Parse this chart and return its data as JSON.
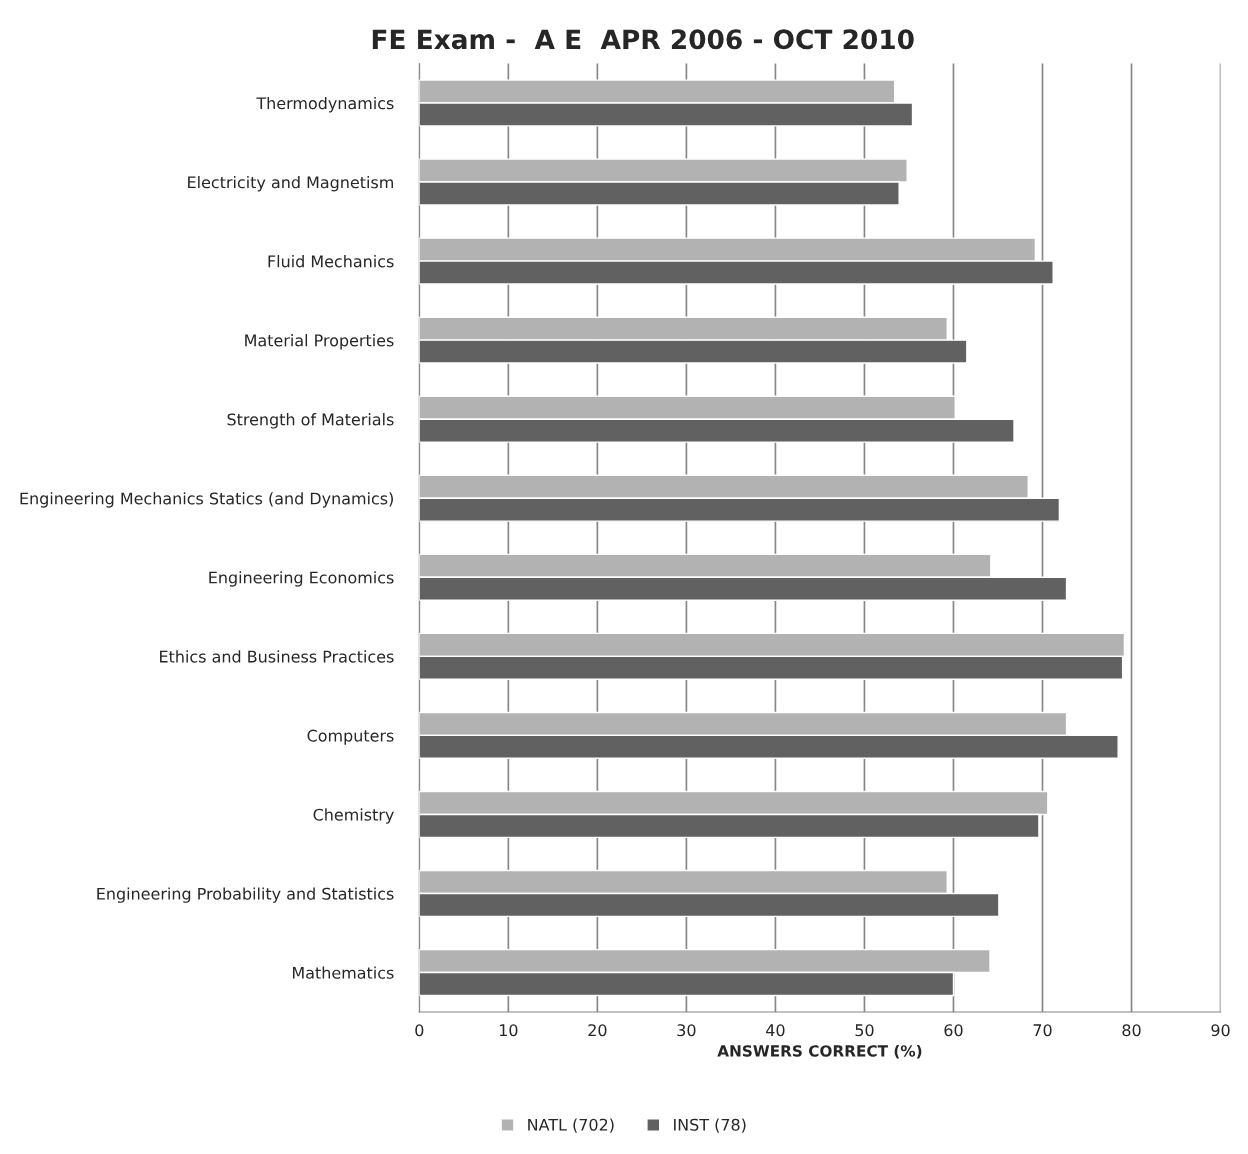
{
  "chart_data": {
    "type": "bar",
    "orientation": "horizontal",
    "title": "FE Exam -  A E  APR 2006 - OCT 2010",
    "xlabel": "ANSWERS CORRECT (%)",
    "categories": [
      "Thermodynamics",
      "Electricity and Magnetism",
      "Fluid Mechanics",
      "Material Properties",
      "Strength of Materials",
      "Engineering Mechanics Statics (and Dynamics)",
      "Engineering Economics",
      "Ethics and Business Practices",
      "Computers",
      "Chemistry",
      "Engineering Probability and Statistics",
      "Mathematics"
    ],
    "series": [
      {
        "name": "NATL (702)",
        "color": "#b2b2b2",
        "values": [
          53.4,
          54.8,
          69.2,
          59.3,
          60.2,
          68.4,
          64.2,
          79.2,
          72.7,
          70.6,
          59.3,
          64.1
        ]
      },
      {
        "name": "INST (78)",
        "color": "#616161",
        "values": [
          55.4,
          53.9,
          71.2,
          61.5,
          66.8,
          71.9,
          72.7,
          79.0,
          78.5,
          69.6,
          65.1,
          60.0
        ]
      }
    ],
    "xlim": [
      0,
      90
    ],
    "xticks": [
      0,
      10,
      20,
      30,
      40,
      50,
      60,
      70,
      80,
      90
    ],
    "grid": "x",
    "legend": "bottom"
  }
}
